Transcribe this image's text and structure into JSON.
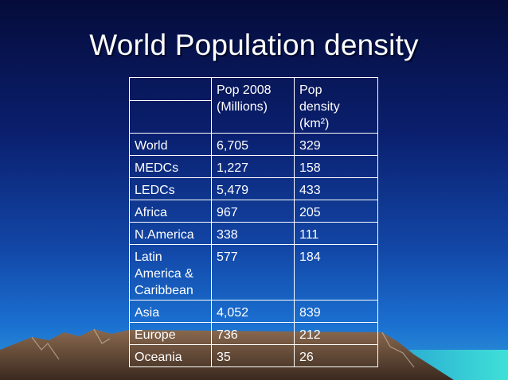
{
  "slide": {
    "title": "World Population density"
  },
  "table": {
    "columns": [
      "",
      "Pop 2008 (Millions)",
      "Pop density (km²)"
    ],
    "header": {
      "pop_line1": "Pop 2008",
      "pop_line2": "(Millions)",
      "density_line1": "Pop",
      "density_line2": "density",
      "density_line3": "(km²)"
    },
    "rows": [
      {
        "region": "World",
        "pop": "6,705",
        "density": "329"
      },
      {
        "region": "MEDCs",
        "pop": "1,227",
        "density": "158"
      },
      {
        "region": "LEDCs",
        "pop": "5,479",
        "density": "433"
      },
      {
        "region": "Africa",
        "pop": "967",
        "density": "205"
      },
      {
        "region": "N.America",
        "pop": "338",
        "density": "111"
      },
      {
        "region": "Latin America & Caribbean",
        "region_lines": [
          "Latin",
          "America &",
          "Caribbean"
        ],
        "pop": "577",
        "density": "184"
      },
      {
        "region": "Asia",
        "pop": "4,052",
        "density": "839"
      },
      {
        "region": "Europe",
        "pop": "736",
        "density": "212"
      },
      {
        "region": "Oceania",
        "pop": "35",
        "density": "26"
      }
    ]
  },
  "colors": {
    "background_top": "#050c3a",
    "background_bottom": "#1a6fd0",
    "sea": "#37c9d6",
    "mountains": "#6b4f3a",
    "text": "#ffffff"
  }
}
